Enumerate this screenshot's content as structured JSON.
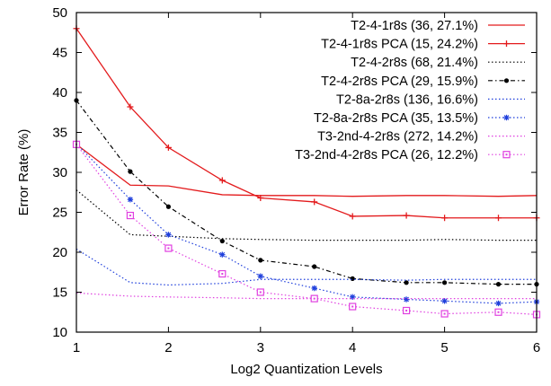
{
  "chart_data": {
    "type": "line",
    "title": "",
    "xlabel": "Log2 Quantization Levels",
    "ylabel": "Error Rate (%)",
    "xlim": [
      1,
      6
    ],
    "ylim": [
      10,
      50
    ],
    "xticks": [
      1,
      2,
      3,
      4,
      5,
      6
    ],
    "yticks": [
      10,
      15,
      20,
      25,
      30,
      35,
      40,
      45,
      50
    ],
    "grid": false,
    "legend_position": "top-right",
    "series": [
      {
        "name": "T2-4-1r8s (36, 27.1%)",
        "color": "#e31a1c",
        "dash": "solid",
        "marker": "none",
        "x": [
          1,
          1.585,
          2,
          2.585,
          3,
          3.585,
          4,
          4.585,
          5,
          5.585,
          6
        ],
        "y": [
          33.5,
          28.4,
          28.3,
          27.2,
          27.1,
          27.1,
          27.0,
          27.1,
          27.1,
          27.0,
          27.1
        ]
      },
      {
        "name": "T2-4-1r8s PCA (15, 24.2%)",
        "color": "#e31a1c",
        "dash": "solid",
        "marker": "plus",
        "x": [
          1,
          1.585,
          2,
          2.585,
          3,
          3.585,
          4,
          4.585,
          5,
          5.585,
          6
        ],
        "y": [
          48.0,
          38.2,
          33.1,
          29.0,
          26.8,
          26.3,
          24.5,
          24.6,
          24.3,
          24.3,
          24.3
        ]
      },
      {
        "name": "T2-4-2r8s (68, 21.4%)",
        "color": "#000000",
        "dash": "dotted",
        "marker": "none",
        "x": [
          1,
          1.585,
          2,
          2.585,
          3,
          3.585,
          4,
          4.585,
          5,
          5.585,
          6
        ],
        "y": [
          27.8,
          22.2,
          22.0,
          21.7,
          21.6,
          21.5,
          21.5,
          21.5,
          21.6,
          21.5,
          21.5
        ]
      },
      {
        "name": "T2-4-2r8s PCA (29, 15.9%)",
        "color": "#000000",
        "dash": "dashdot",
        "marker": "dot",
        "x": [
          1,
          1.585,
          2,
          2.585,
          3,
          3.585,
          4,
          4.585,
          5,
          5.585,
          6
        ],
        "y": [
          39.0,
          30.1,
          25.7,
          21.4,
          19.0,
          18.2,
          16.7,
          16.2,
          16.2,
          16.0,
          16.0
        ]
      },
      {
        "name": "T2-8a-2r8s (136, 16.6%)",
        "color": "#1f3fdc",
        "dash": "dotted",
        "marker": "none",
        "x": [
          1,
          1.585,
          2,
          2.585,
          3,
          3.585,
          4,
          4.585,
          5,
          5.585,
          6
        ],
        "y": [
          20.4,
          16.2,
          15.9,
          16.1,
          16.6,
          16.6,
          16.6,
          16.5,
          16.6,
          16.6,
          16.6
        ]
      },
      {
        "name": "T2-8a-2r8s PCA (35, 13.5%)",
        "color": "#1f3fdc",
        "dash": "dotted",
        "marker": "star",
        "x": [
          1,
          1.585,
          2,
          2.585,
          3,
          3.585,
          4,
          4.585,
          5,
          5.585,
          6
        ],
        "y": [
          33.6,
          26.6,
          22.2,
          19.7,
          17.0,
          15.5,
          14.4,
          14.1,
          13.9,
          13.6,
          13.8
        ]
      },
      {
        "name": "T3-2nd-4-2r8s (272, 14.2%)",
        "color": "#e040e0",
        "dash": "dotted",
        "marker": "none",
        "x": [
          1,
          1.585,
          2,
          2.585,
          3,
          3.585,
          4,
          4.585,
          5,
          5.585,
          6
        ],
        "y": [
          14.9,
          14.5,
          14.4,
          14.3,
          14.2,
          14.2,
          14.2,
          14.2,
          14.2,
          14.2,
          14.2
        ]
      },
      {
        "name": "T3-2nd-4-2r8s PCA (26, 12.2%)",
        "color": "#e040e0",
        "dash": "dotted",
        "marker": "square",
        "x": [
          1,
          1.585,
          2,
          2.585,
          3,
          3.585,
          4,
          4.585,
          5,
          5.585,
          6
        ],
        "y": [
          33.5,
          24.6,
          20.5,
          17.3,
          15.0,
          14.2,
          13.2,
          12.7,
          12.3,
          12.5,
          12.2
        ]
      }
    ]
  }
}
